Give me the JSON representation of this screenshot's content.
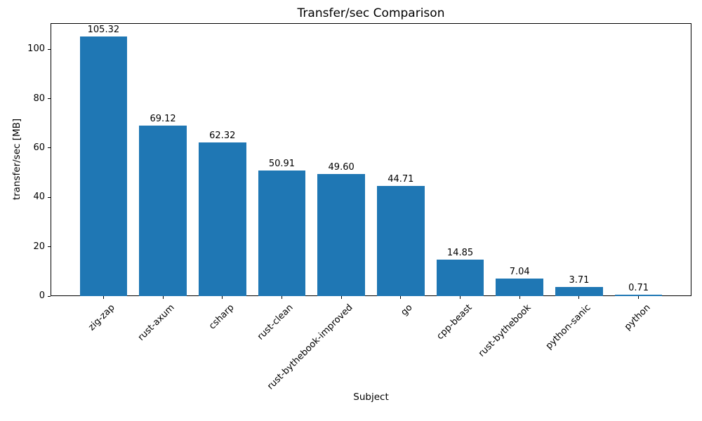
{
  "title": "Transfer/sec Comparison",
  "chart_data": {
    "type": "bar",
    "title": "Transfer/sec Comparison",
    "xlabel": "Subject",
    "ylabel": "transfer/sec [MB]",
    "categories": [
      "zig-zap",
      "rust-axum",
      "csharp",
      "rust-clean",
      "rust-bythebook-improved",
      "go",
      "cpp-beast",
      "rust-bythebook",
      "python-sanic",
      "python"
    ],
    "values": [
      105.32,
      69.12,
      62.32,
      50.91,
      49.6,
      44.71,
      14.85,
      7.04,
      3.71,
      0.71
    ],
    "value_labels": [
      "105.32",
      "69.12",
      "62.32",
      "50.91",
      "49.60",
      "44.71",
      "14.85",
      "7.04",
      "3.71",
      "0.71"
    ],
    "yticks": [
      0,
      20,
      40,
      60,
      80,
      100
    ],
    "ylim": [
      0,
      110.6
    ],
    "bar_color": "#1f77b4",
    "grid": false,
    "legend_position": "none",
    "xticklabel_rotation_deg": 45
  }
}
